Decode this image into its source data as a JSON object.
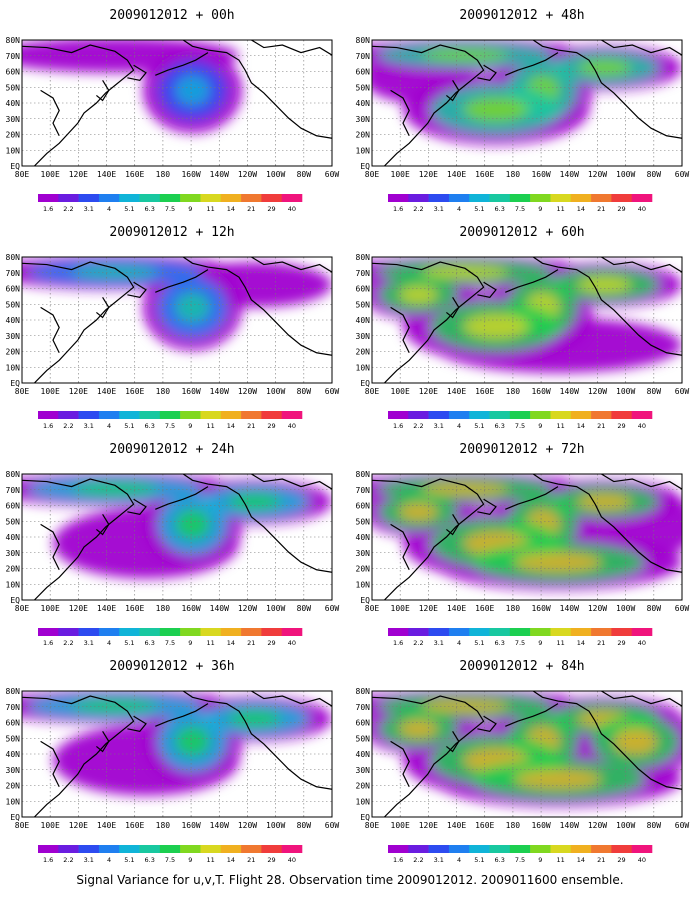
{
  "caption": "Signal Variance for u,v,T. Flight 28. Observation time 2009012012. 2009011600 ensemble.",
  "lon_labels": [
    "80E",
    "100E",
    "120E",
    "140E",
    "160E",
    "180",
    "160W",
    "140W",
    "120W",
    "100W",
    "80W",
    "60W"
  ],
  "lat_labels": [
    "80N",
    "70N",
    "60N",
    "50N",
    "40N",
    "30N",
    "20N",
    "10N",
    "EQ"
  ],
  "colorbar": {
    "labels": [
      "1.6",
      "2.2",
      "3.1",
      "4",
      "5.1",
      "6.3",
      "7.5",
      "9",
      "11",
      "14",
      "21",
      "29",
      "40"
    ],
    "colors": [
      "#a000d0",
      "#6a1ce0",
      "#2d4bf0",
      "#1f7ff0",
      "#10b4d8",
      "#18c8a0",
      "#1ccf50",
      "#80d820",
      "#d8d820",
      "#f0b020",
      "#f07830",
      "#f03c3c",
      "#f0147c"
    ]
  },
  "panels": [
    {
      "title": "2009012012 + 00h",
      "level": 0
    },
    {
      "title": "2009012012 + 48h",
      "level": 3
    },
    {
      "title": "2009012012 + 12h",
      "level": 1
    },
    {
      "title": "2009012012 + 60h",
      "level": 4
    },
    {
      "title": "2009012012 + 24h",
      "level": 2
    },
    {
      "title": "2009012012 + 72h",
      "level": 5
    },
    {
      "title": "2009012012 + 36h",
      "level": 2
    },
    {
      "title": "2009012012 + 84h",
      "level": 6
    }
  ]
}
